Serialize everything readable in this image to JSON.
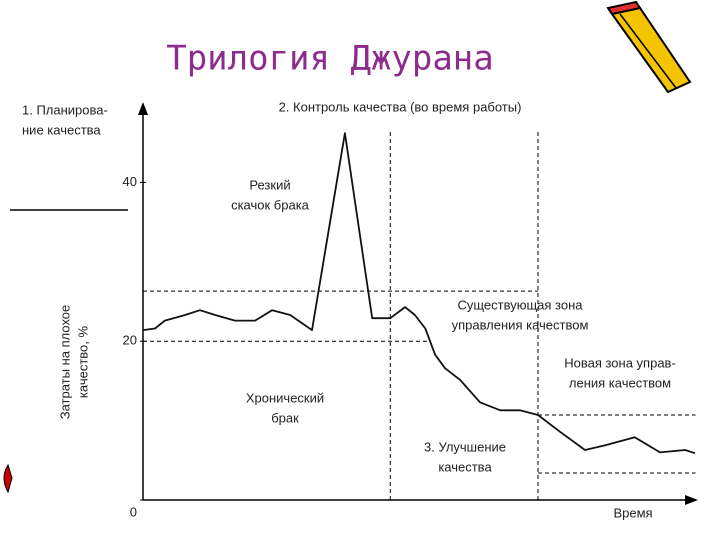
{
  "chart_data": {
    "type": "line",
    "title": "Трилогия Джурана",
    "y_label": [
      "Затраты на плохое",
      "качество, %"
    ],
    "x_label": "Время",
    "xlim": [
      0,
      102
    ],
    "ylim": [
      0,
      50
    ],
    "yticks": [
      0,
      20,
      40
    ],
    "series": [
      {
        "color": "#111111",
        "x": [
          0,
          2.2,
          4.0,
          7.7,
          10.4,
          13.2,
          16.8,
          20.5,
          23.6,
          26.9,
          30.9,
          36.9,
          41.9,
          45.2,
          47.9,
          49.7,
          51.6,
          53.4,
          55.2,
          58.0,
          61.6,
          65.3,
          68.9,
          72.2,
          76.2,
          80.8,
          84.5,
          89.9,
          94.5,
          99.1,
          100.9
        ],
        "values": [
          21.4,
          21.6,
          22.6,
          23.3,
          23.9,
          23.3,
          22.6,
          22.6,
          23.9,
          23.3,
          21.4,
          46.2,
          22.9,
          22.9,
          24.3,
          23.3,
          21.6,
          18.3,
          16.6,
          15.1,
          12.3,
          11.3,
          11.3,
          10.7,
          8.6,
          6.3,
          6.9,
          7.9,
          6.0,
          6.3,
          5.9
        ]
      }
    ],
    "reference_lines": [
      {
        "y": 26.3,
        "x": [
          0,
          72.2
        ]
      },
      {
        "y": 20.0,
        "x": [
          0,
          52.5
        ]
      },
      {
        "y": 10.7,
        "x": [
          72.2,
          101
        ]
      },
      {
        "y": 3.4,
        "x": [
          72.2,
          101
        ]
      },
      {
        "x": 45.2,
        "y": [
          0,
          46.6
        ]
      },
      {
        "x": 72.2,
        "y": [
          0,
          46.6
        ]
      }
    ],
    "annotations": [
      {
        "lines": [
          "1. Планирова-",
          "ние качества"
        ]
      },
      {
        "lines": [
          "2. Контроль качества (во время работы)"
        ]
      },
      {
        "lines": [
          "Резкий",
          "скачок брака"
        ]
      },
      {
        "lines": [
          "Существующая зона",
          "управления качеством"
        ]
      },
      {
        "lines": [
          "Новая зона управ-",
          "ления качеством"
        ]
      },
      {
        "lines": [
          "Хронический",
          "брак"
        ]
      },
      {
        "lines": [
          "3. Улучшение",
          "качества"
        ]
      }
    ]
  }
}
